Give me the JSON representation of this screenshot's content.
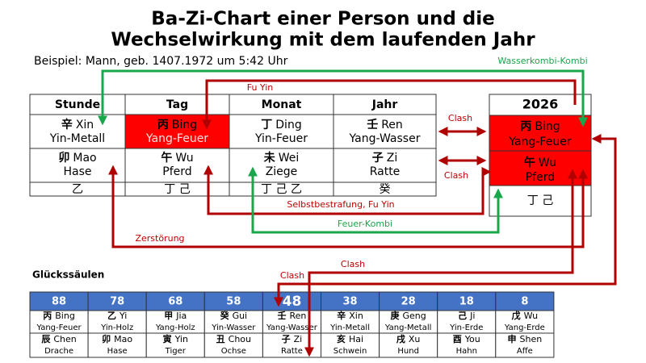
{
  "header": {
    "title_line1": "Ba-Zi-Chart einer Person und die",
    "title_line2": "Wechselwirkung mit dem laufenden Jahr",
    "subtitle": "Beispiel: Mann, geb. 1407.1972 um 5:42 Uhr"
  },
  "pillars": {
    "headers": [
      "Stunde",
      "Tag",
      "Monat",
      "Jahr"
    ],
    "columns": [
      {
        "stem_char": "辛",
        "stem_name": "Xin",
        "stem_element": "Yin-Metall",
        "branch_char": "卯",
        "branch_name": "Mao",
        "branch_animal": "Hase",
        "hidden": "乙"
      },
      {
        "stem_char": "丙",
        "stem_name": "Bing",
        "stem_element": "Yang-Feuer",
        "branch_char": "午",
        "branch_name": "Wu",
        "branch_animal": "Pferd",
        "hidden": "丁 己"
      },
      {
        "stem_char": "丁",
        "stem_name": "Ding",
        "stem_element": "Yin-Feuer",
        "branch_char": "未",
        "branch_name": "Wei",
        "branch_animal": "Ziege",
        "hidden": "丁 己 乙"
      },
      {
        "stem_char": "壬",
        "stem_name": "Ren",
        "stem_element": "Yang-Wasser",
        "branch_char": "子",
        "branch_name": "Zi",
        "branch_animal": "Ratte",
        "hidden": "癸"
      }
    ]
  },
  "year": {
    "label": "2026",
    "stem_char": "丙",
    "stem_name": "Bing",
    "stem_element": "Yang-Feuer",
    "branch_char": "午",
    "branch_name": "Wu",
    "branch_animal": "Pferd",
    "hidden": "丁 己"
  },
  "annotations": {
    "water_combo": "Wasserkombi-Kombi",
    "fu_yin": "Fu Yin",
    "clash_stem": "Clash",
    "clash_branch": "Clash",
    "self_punishment": "Selbstbestrafung, Fu Yin",
    "fire_combo": "Feuer-Kombi",
    "destruction": "Zerstörung",
    "clash_luck_stem": "Clash",
    "clash_luck_branch": "Clash"
  },
  "luck_pillars": {
    "title": "Glückssäulen",
    "columns": [
      {
        "age": 88,
        "stem_char": "丙",
        "stem_name": "Bing",
        "stem_element": "Yang-Feuer",
        "branch_char": "辰",
        "branch_name": "Chen",
        "branch_animal": "Drache"
      },
      {
        "age": 78,
        "stem_char": "乙",
        "stem_name": "Yi",
        "stem_element": "Yin-Holz",
        "branch_char": "卯",
        "branch_name": "Mao",
        "branch_animal": "Hase"
      },
      {
        "age": 68,
        "stem_char": "甲",
        "stem_name": "Jia",
        "stem_element": "Yang-Holz",
        "branch_char": "寅",
        "branch_name": "Yin",
        "branch_animal": "Tiger"
      },
      {
        "age": 58,
        "stem_char": "癸",
        "stem_name": "Gui",
        "stem_element": "Yin-Wasser",
        "branch_char": "丑",
        "branch_name": "Chou",
        "branch_animal": "Ochse"
      },
      {
        "age": 48,
        "stem_char": "壬",
        "stem_name": "Ren",
        "stem_element": "Yang-Wasser",
        "branch_char": "子",
        "branch_name": "Zi",
        "branch_animal": "Ratte"
      },
      {
        "age": 38,
        "stem_char": "辛",
        "stem_name": "Xin",
        "stem_element": "Yin-Metall",
        "branch_char": "亥",
        "branch_name": "Hai",
        "branch_animal": "Schwein"
      },
      {
        "age": 28,
        "stem_char": "庚",
        "stem_name": "Geng",
        "stem_element": "Yang-Metall",
        "branch_char": "戌",
        "branch_name": "Xu",
        "branch_animal": "Hund"
      },
      {
        "age": 18,
        "stem_char": "己",
        "stem_name": "Ji",
        "stem_element": "Yin-Erde",
        "branch_char": "酉",
        "branch_name": "You",
        "branch_animal": "Hahn"
      },
      {
        "age": 8,
        "stem_char": "戊",
        "stem_name": "Wu",
        "stem_element": "Yang-Erde",
        "branch_char": "申",
        "branch_name": "Shen",
        "branch_animal": "Affe"
      }
    ]
  }
}
